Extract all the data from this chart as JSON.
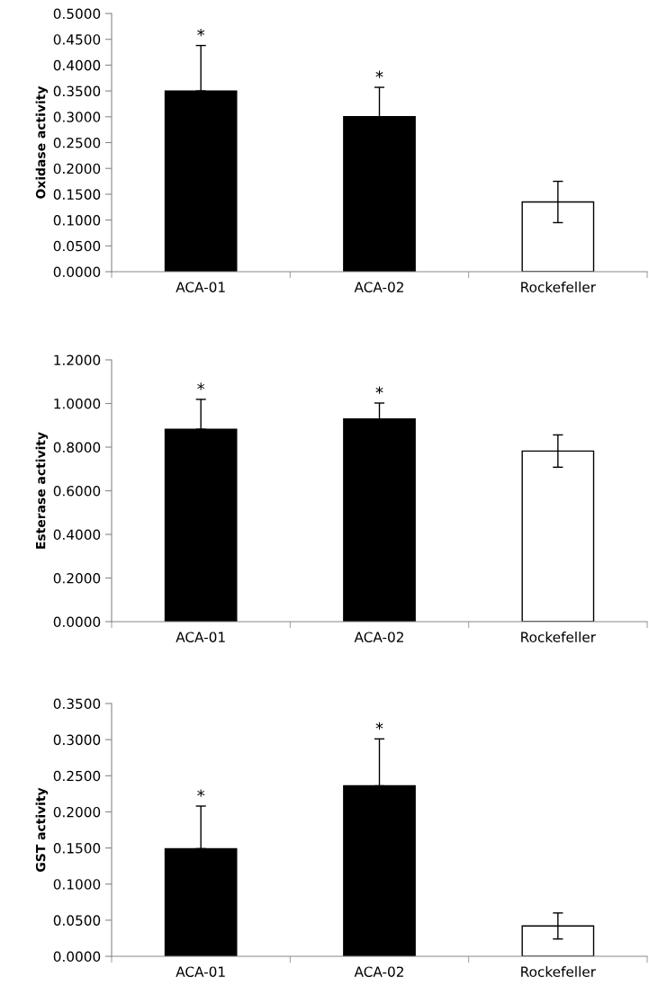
{
  "chart_data": [
    {
      "type": "bar",
      "ylabel": "Oxidase activity",
      "categories": [
        "ACA-01",
        "ACA-02",
        "Rockefeller"
      ],
      "values": [
        0.35,
        0.3,
        0.135
      ],
      "colors": [
        "#000000",
        "#000000",
        "#ffffff"
      ],
      "errors": [
        [
          0.35,
          0.438
        ],
        [
          0.3,
          0.357
        ],
        0.04
      ],
      "ylim": [
        0,
        0.5
      ],
      "yticks": [
        {
          "value": 0,
          "label": "0.0000"
        },
        {
          "value": 0.05,
          "label": "0.0500"
        },
        {
          "value": 0.1,
          "label": "0.1000"
        },
        {
          "value": 0.15,
          "label": "0.1500"
        },
        {
          "value": 0.2,
          "label": "0.2000"
        },
        {
          "value": 0.25,
          "label": "0.2500"
        },
        {
          "value": 0.3,
          "label": "0.3000"
        },
        {
          "value": 0.35,
          "label": "0.3500"
        },
        {
          "value": 0.4,
          "label": "0.4000"
        },
        {
          "value": 0.45,
          "label": "0.4500"
        },
        {
          "value": 0.5,
          "label": "0.5000"
        }
      ],
      "grid": false,
      "legend": false,
      "annotations": [
        "*",
        "*"
      ]
    },
    {
      "type": "bar",
      "ylabel": "Esterase activity",
      "categories": [
        "ACA-01",
        "ACA-02",
        "Rockefeller"
      ],
      "values": [
        0.882,
        0.929,
        0.782
      ],
      "colors": [
        "#000000",
        "#000000",
        "#ffffff"
      ],
      "errors": [
        [
          0.882,
          1.019
        ],
        [
          0.929,
          1.002
        ],
        0.074
      ],
      "ylim": [
        0,
        1.2
      ],
      "yticks": [
        {
          "value": 0,
          "label": "0.0000"
        },
        {
          "value": 0.2,
          "label": "0.2000"
        },
        {
          "value": 0.4,
          "label": "0.4000"
        },
        {
          "value": 0.6,
          "label": "0.6000"
        },
        {
          "value": 0.8,
          "label": "0.8000"
        },
        {
          "value": 1.0,
          "label": "1.0000"
        },
        {
          "value": 1.2,
          "label": "1.2000"
        }
      ],
      "grid": false,
      "legend": false,
      "annotations": [
        "*",
        "*"
      ]
    },
    {
      "type": "bar",
      "ylabel": "GST activity",
      "categories": [
        "ACA-01",
        "ACA-02",
        "Rockefeller"
      ],
      "values": [
        0.149,
        0.236,
        0.042
      ],
      "colors": [
        "#000000",
        "#000000",
        "#ffffff"
      ],
      "errors": [
        [
          0.149,
          0.208
        ],
        [
          0.236,
          0.301
        ],
        0.018
      ],
      "ylim": [
        0,
        0.35
      ],
      "yticks": [
        {
          "value": 0,
          "label": "0.0000"
        },
        {
          "value": 0.05,
          "label": "0.0500"
        },
        {
          "value": 0.1,
          "label": "0.1000"
        },
        {
          "value": 0.15,
          "label": "0.1500"
        },
        {
          "value": 0.2,
          "label": "0.2000"
        },
        {
          "value": 0.25,
          "label": "0.2500"
        },
        {
          "value": 0.3,
          "label": "0.3000"
        },
        {
          "value": 0.35,
          "label": "0.3500"
        }
      ],
      "grid": false,
      "legend": false,
      "annotations": [
        "*",
        "*"
      ]
    }
  ]
}
